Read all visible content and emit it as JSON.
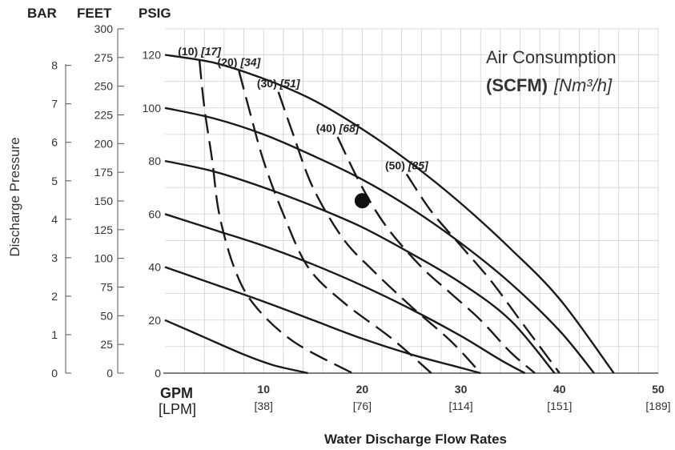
{
  "header": {
    "bar": "BAR",
    "feet": "FEET",
    "psig": "PSIG"
  },
  "legend": {
    "line1": "Air Consumption",
    "line2_bold": "(SCFM)",
    "line2_italic": "[Nm³/h]"
  },
  "chart_data": {
    "type": "line",
    "title": "",
    "xlabel": "Water Discharge Flow Rates",
    "ylabel": "Discharge Pressure",
    "x_unit": "GPM",
    "x_unit_alt": "[LPM]",
    "xlim": [
      0,
      50
    ],
    "ylim": [
      0,
      130
    ],
    "grid": true,
    "legend_position": "top-right",
    "x_ticks": [
      {
        "value": 10,
        "label": "10",
        "alt": "[38]"
      },
      {
        "value": 20,
        "label": "20",
        "alt": "[76]"
      },
      {
        "value": 30,
        "label": "30",
        "alt": "[114]"
      },
      {
        "value": 40,
        "label": "40",
        "alt": "[151]"
      },
      {
        "value": 50,
        "label": "50",
        "alt": "[189]"
      }
    ],
    "psig_ticks": [
      "0",
      "20",
      "40",
      "60",
      "80",
      "100",
      "120"
    ],
    "feet_ticks": [
      "0",
      "25",
      "50",
      "75",
      "100",
      "125",
      "150",
      "175",
      "200",
      "225",
      "250",
      "275",
      "300"
    ],
    "bar_ticks": [
      "0",
      "1",
      "2",
      "3",
      "4",
      "5",
      "6",
      "7",
      "8"
    ],
    "performance_curves": [
      {
        "name": "20 psig",
        "points": [
          [
            0,
            20
          ],
          [
            4,
            13.5
          ],
          [
            8,
            7
          ],
          [
            11,
            3
          ],
          [
            14.5,
            0
          ]
        ]
      },
      {
        "name": "40 psig",
        "points": [
          [
            0,
            40
          ],
          [
            5,
            33.5
          ],
          [
            10,
            27
          ],
          [
            15,
            20
          ],
          [
            20,
            13
          ],
          [
            25,
            7
          ],
          [
            30,
            2
          ],
          [
            32,
            0
          ]
        ]
      },
      {
        "name": "60 psig",
        "points": [
          [
            0,
            60
          ],
          [
            5,
            54
          ],
          [
            10,
            48
          ],
          [
            15,
            41
          ],
          [
            20,
            33
          ],
          [
            25,
            24
          ],
          [
            30,
            14
          ],
          [
            34,
            5
          ],
          [
            36.5,
            0
          ]
        ]
      },
      {
        "name": "80 psig",
        "points": [
          [
            0,
            80
          ],
          [
            5,
            76
          ],
          [
            10,
            70
          ],
          [
            15,
            63
          ],
          [
            20,
            55
          ],
          [
            25,
            45
          ],
          [
            30,
            34
          ],
          [
            35,
            20
          ],
          [
            39.5,
            0
          ]
        ]
      },
      {
        "name": "100 psig",
        "points": [
          [
            0,
            100
          ],
          [
            5,
            96
          ],
          [
            10,
            90
          ],
          [
            15,
            82
          ],
          [
            20,
            73
          ],
          [
            25,
            62
          ],
          [
            30,
            49
          ],
          [
            35,
            34
          ],
          [
            40,
            16
          ],
          [
            43.5,
            0
          ]
        ]
      },
      {
        "name": "120 psig",
        "points": [
          [
            0,
            120
          ],
          [
            5,
            117
          ],
          [
            10,
            111
          ],
          [
            15,
            103
          ],
          [
            20,
            92
          ],
          [
            25,
            79
          ],
          [
            30,
            64
          ],
          [
            35,
            47
          ],
          [
            40,
            28
          ],
          [
            45.5,
            0
          ]
        ]
      }
    ],
    "air_consumption_curves": [
      {
        "scfm": "(10)",
        "nm3h": "[17]",
        "points": [
          [
            3.5,
            118
          ],
          [
            4,
            100
          ],
          [
            4.8,
            80
          ],
          [
            5.5,
            60
          ],
          [
            7,
            40
          ],
          [
            9,
            26
          ],
          [
            13,
            12
          ],
          [
            19,
            0
          ]
        ]
      },
      {
        "scfm": "(20)",
        "nm3h": "[34]",
        "points": [
          [
            7.5,
            114
          ],
          [
            8.5,
            100
          ],
          [
            10,
            80
          ],
          [
            12,
            60
          ],
          [
            14.5,
            40
          ],
          [
            18,
            27
          ],
          [
            23,
            13
          ],
          [
            27,
            0
          ]
        ]
      },
      {
        "scfm": "(30)",
        "nm3h": "[51]",
        "points": [
          [
            11.5,
            106
          ],
          [
            13,
            90
          ],
          [
            15,
            70
          ],
          [
            18,
            51
          ],
          [
            21,
            39
          ],
          [
            25,
            25
          ],
          [
            29,
            12
          ],
          [
            32,
            0
          ]
        ]
      },
      {
        "scfm": "(40)",
        "nm3h": "[68]",
        "points": [
          [
            17.5,
            89
          ],
          [
            20,
            70
          ],
          [
            22.5,
            55
          ],
          [
            26,
            40
          ],
          [
            29,
            30
          ],
          [
            32,
            20
          ],
          [
            35,
            8
          ],
          [
            37.5,
            0
          ]
        ]
      },
      {
        "scfm": "(50)",
        "nm3h": "[85]",
        "points": [
          [
            24.5,
            75
          ],
          [
            27,
            61
          ],
          [
            30,
            48
          ],
          [
            33,
            35
          ],
          [
            36,
            20
          ],
          [
            38,
            10
          ],
          [
            40,
            0
          ]
        ]
      }
    ],
    "operating_point": {
      "x": 20,
      "y": 65
    }
  }
}
